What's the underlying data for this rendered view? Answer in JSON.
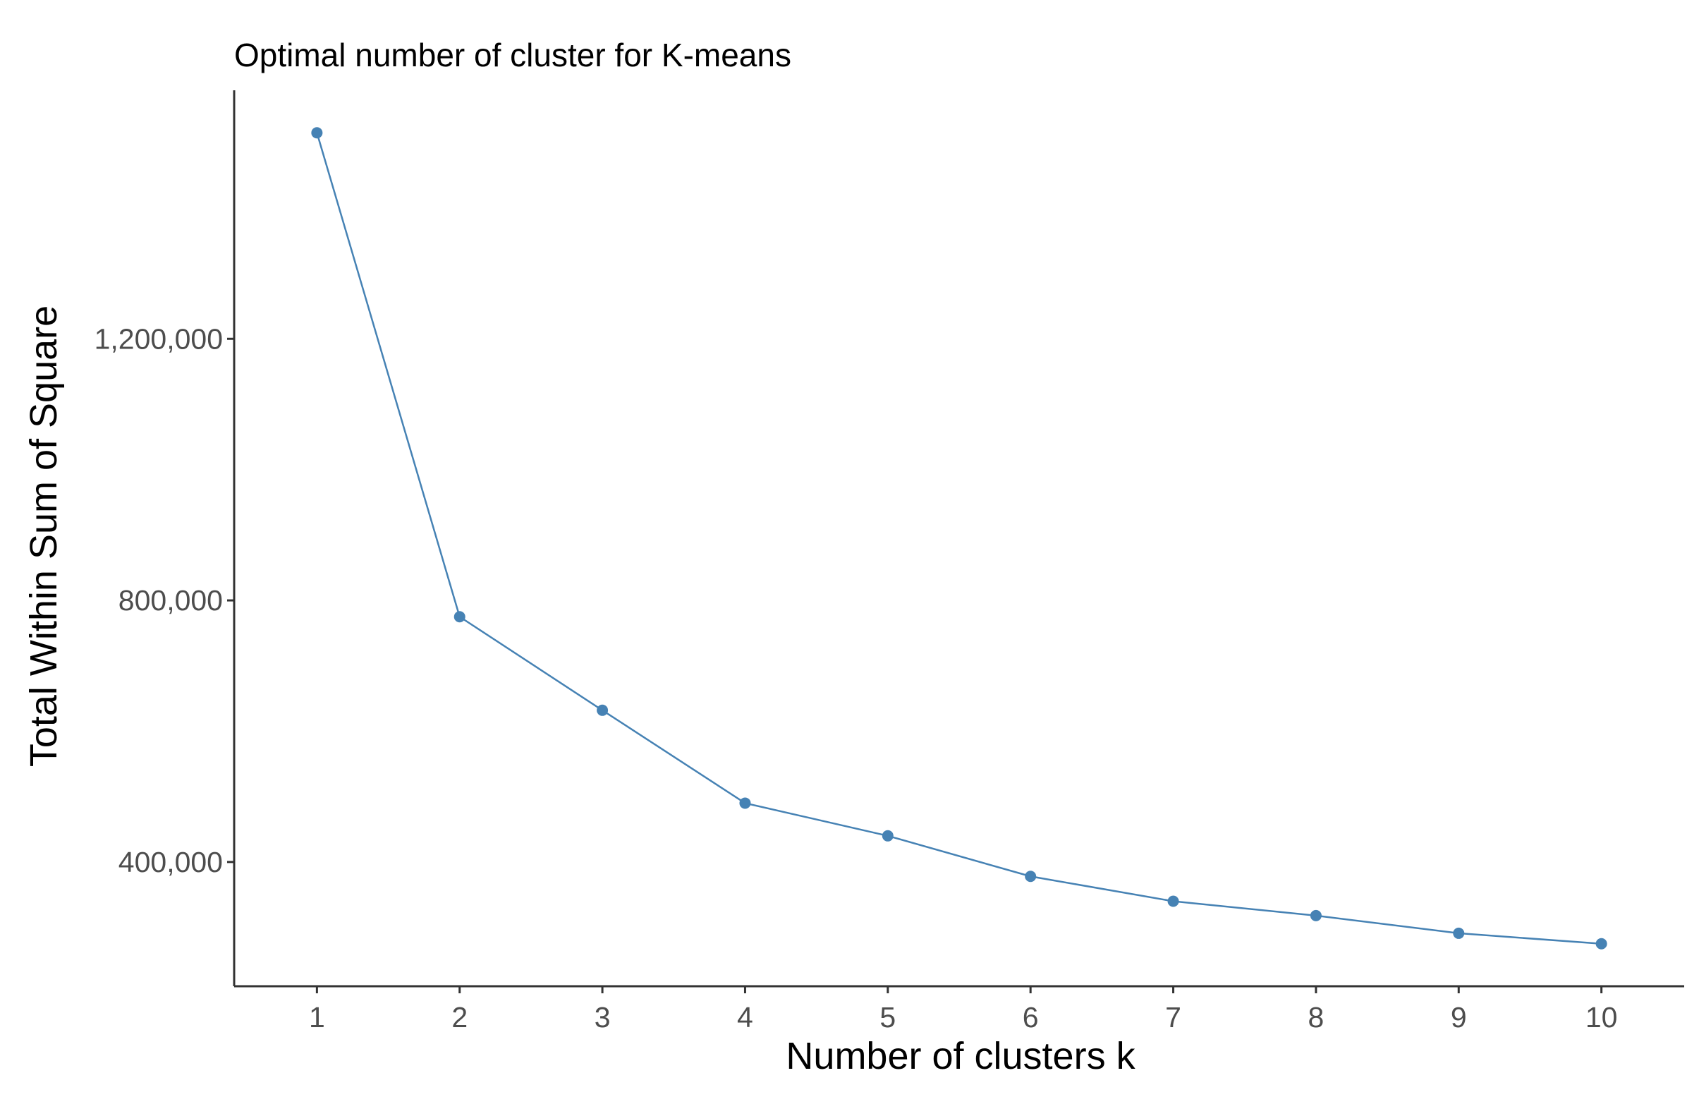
{
  "chart_data": {
    "type": "line",
    "title": "Optimal number of cluster for K-means",
    "xlabel": "Number of clusters k",
    "ylabel": "Total Within Sum of Square",
    "x": [
      1,
      2,
      3,
      4,
      5,
      6,
      7,
      8,
      9,
      10
    ],
    "x_tick_labels": [
      "1",
      "2",
      "3",
      "4",
      "5",
      "6",
      "7",
      "8",
      "9",
      "10"
    ],
    "series": [
      {
        "values": [
          1515000,
          775000,
          632000,
          490000,
          440000,
          378000,
          340000,
          318000,
          291000,
          275000
        ],
        "color": "#4682B4"
      }
    ],
    "y_ticks": [
      400000,
      800000,
      1200000
    ],
    "y_tick_labels": [
      "400,000",
      "800,000",
      "1,200,000"
    ],
    "xlim": [
      0.42,
      10.58
    ],
    "ylim": [
      210000,
      1580000
    ],
    "grid": false,
    "legend": "none",
    "colors": {
      "line": "#4682B4",
      "axis": "#333333",
      "tick_label": "#4D4D4D",
      "text": "#000000"
    }
  }
}
